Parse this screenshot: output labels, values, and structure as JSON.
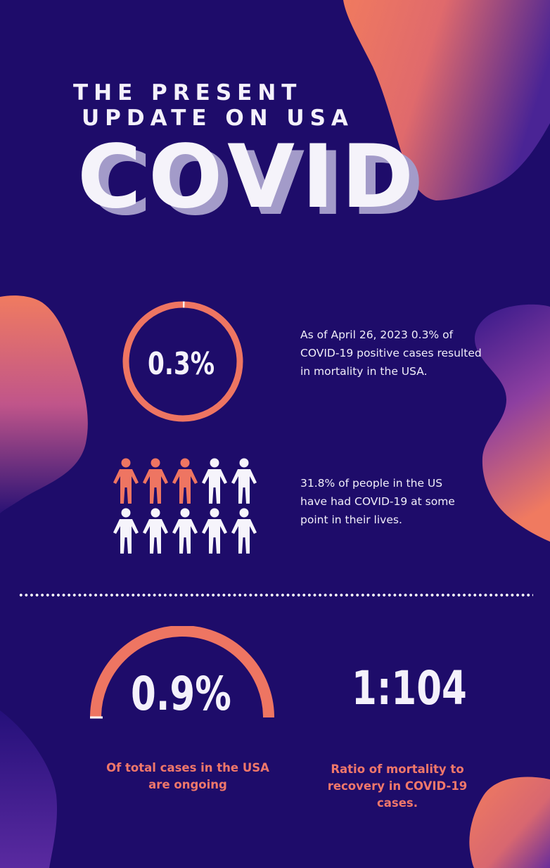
{
  "header": {
    "title_line1": "THE PRESENT",
    "title_line2": "UPDATE ON USA",
    "main_title": "COVID"
  },
  "mortality": {
    "value_label": "0.3%",
    "percent": 0.3,
    "text": "As of April 26, 2023 0.3% of COVID-19 positive cases resulted in mortality in the USA."
  },
  "infected": {
    "text": "31.8% of people in the US have had COVID-19 at some point in their lives.",
    "highlighted_people": 3,
    "total_people": 10
  },
  "ongoing": {
    "value_label": "0.9%",
    "percent": 0.9,
    "caption": "Of total cases in the USA are ongoing"
  },
  "ratio": {
    "value_label": "1:104",
    "caption": "Ratio of mortality to recovery in COVID-19 cases."
  },
  "colors": {
    "background": "#1e0c6a",
    "accent": "#ee7562",
    "text": "#f4f1fb",
    "blob_dark": "#51259a"
  },
  "icons": {
    "person": "person-icon",
    "progress_ring": "donut-ring",
    "progress_gauge": "semicircle-gauge"
  }
}
